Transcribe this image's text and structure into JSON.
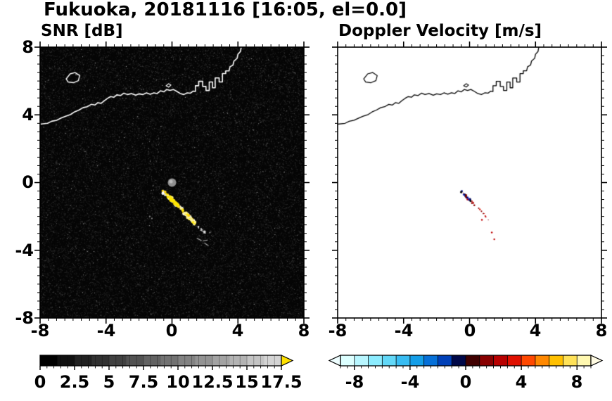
{
  "title": "Fukuoka, 20181116 [16:05, el=0.0]",
  "panels": [
    {
      "title": "SNR [dB]",
      "xticks": [
        "-8",
        "-4",
        "0",
        "4",
        "8"
      ],
      "yticks": [
        "8",
        "4",
        "0",
        "-4",
        "-8"
      ],
      "colorbar": {
        "labels": [
          "0",
          "2.5",
          "5",
          "7.5",
          "10",
          "12.5",
          "15",
          "17.5"
        ],
        "min": 0,
        "max": 17.5,
        "colormap": "grayscale",
        "over_arrow_color": "#ffe100"
      }
    },
    {
      "title": "Doppler Velocity [m/s]",
      "xticks": [
        "-8",
        "-4",
        "0",
        "4",
        "8"
      ],
      "colorbar": {
        "labels": [
          "-8",
          "-4",
          "0",
          "4",
          "8"
        ],
        "min": -9,
        "max": 9,
        "segment_colors": [
          "#dcffff",
          "#b8f6ff",
          "#8cecff",
          "#62d8f8",
          "#38bcf2",
          "#149ee8",
          "#0670d8",
          "#0040b8",
          "#000848",
          "#400000",
          "#880000",
          "#b80000",
          "#e01000",
          "#ff4800",
          "#ff8800",
          "#ffc000",
          "#ffe258",
          "#fff8b0"
        ],
        "under_arrow_color": "#eefeff",
        "over_arrow_color": "#fffbe2"
      }
    }
  ],
  "chart_data": {
    "type": "heatmap",
    "xlim": [
      -8,
      8
    ],
    "ylim": [
      -8,
      8
    ],
    "xticks": [
      -8,
      -4,
      0,
      4,
      8
    ],
    "yticks": [
      -8,
      -4,
      0,
      4,
      8
    ],
    "radar_site": [
      0,
      0
    ],
    "echo_streak": {
      "start": [
        -0.5,
        -0.55
      ],
      "end": [
        1.45,
        -2.45
      ]
    },
    "echo_tail": {
      "start": [
        1.55,
        -2.6
      ],
      "end": [
        2.05,
        -3.0
      ]
    },
    "snr_feature_colors": [
      "#ffffff",
      "#ffe600",
      "#fff48c",
      "#e6e6e6",
      "#ffd400"
    ],
    "doppler_negative_colors": [
      "#000850",
      "#001090",
      "#060606",
      "#1420b4"
    ],
    "doppler_positive_colors": [
      "#8b0000",
      "#c00000",
      "#e01000"
    ],
    "doppler_specks": [
      [
        1.35,
        -2.95
      ],
      [
        1.5,
        -3.35
      ],
      [
        0.75,
        -2.2
      ]
    ],
    "faint_points": [
      [
        -1.35,
        -2.0
      ],
      [
        -1.22,
        -2.12
      ],
      [
        2.3,
        -2.95
      ]
    ],
    "bracket_lines": [
      [
        [
          1.52,
          -3.3
        ],
        [
          1.78,
          -3.42
        ]
      ],
      [
        [
          1.9,
          -3.44
        ],
        [
          2.14,
          -3.4
        ]
      ],
      [
        [
          1.98,
          -3.58
        ],
        [
          2.2,
          -3.72
        ]
      ]
    ],
    "coastline": [
      [
        -8.0,
        3.45
      ],
      [
        -7.55,
        3.5
      ],
      [
        -7.3,
        3.62
      ],
      [
        -7.0,
        3.68
      ],
      [
        -6.7,
        3.82
      ],
      [
        -6.45,
        3.92
      ],
      [
        -6.15,
        4.02
      ],
      [
        -5.9,
        4.18
      ],
      [
        -5.65,
        4.28
      ],
      [
        -5.4,
        4.42
      ],
      [
        -5.15,
        4.48
      ],
      [
        -4.9,
        4.62
      ],
      [
        -4.68,
        4.58
      ],
      [
        -4.5,
        4.72
      ],
      [
        -4.3,
        4.68
      ],
      [
        -4.1,
        4.84
      ],
      [
        -3.9,
        4.98
      ],
      [
        -3.72,
        5.08
      ],
      [
        -3.52,
        5.04
      ],
      [
        -3.35,
        5.18
      ],
      [
        -3.12,
        5.14
      ],
      [
        -2.92,
        5.28
      ],
      [
        -2.7,
        5.2
      ],
      [
        -2.46,
        5.26
      ],
      [
        -2.2,
        5.16
      ],
      [
        -2.0,
        5.24
      ],
      [
        -1.76,
        5.2
      ],
      [
        -1.55,
        5.3
      ],
      [
        -1.32,
        5.22
      ],
      [
        -1.1,
        5.3
      ],
      [
        -0.9,
        5.26
      ],
      [
        -0.7,
        5.42
      ],
      [
        -0.5,
        5.36
      ],
      [
        -0.32,
        5.5
      ],
      [
        -0.12,
        5.44
      ],
      [
        0.08,
        5.5
      ],
      [
        0.3,
        5.38
      ],
      [
        0.5,
        5.26
      ],
      [
        0.72,
        5.2
      ],
      [
        0.92,
        5.3
      ],
      [
        1.12,
        5.28
      ],
      [
        1.28,
        5.4
      ],
      [
        1.42,
        5.38
      ],
      [
        1.42,
        5.72
      ],
      [
        1.62,
        5.72
      ],
      [
        1.62,
        5.98
      ],
      [
        1.86,
        5.98
      ],
      [
        1.86,
        5.68
      ],
      [
        2.06,
        5.68
      ],
      [
        2.06,
        5.44
      ],
      [
        2.26,
        5.44
      ],
      [
        2.26,
        5.94
      ],
      [
        2.46,
        5.94
      ],
      [
        2.46,
        5.6
      ],
      [
        2.62,
        5.6
      ],
      [
        2.62,
        6.18
      ],
      [
        2.86,
        6.18
      ],
      [
        2.86,
        5.94
      ],
      [
        3.06,
        5.94
      ],
      [
        3.06,
        6.44
      ],
      [
        3.26,
        6.44
      ],
      [
        3.26,
        6.6
      ],
      [
        3.46,
        6.6
      ],
      [
        3.52,
        6.84
      ],
      [
        3.7,
        6.94
      ],
      [
        3.76,
        7.18
      ],
      [
        3.95,
        7.34
      ],
      [
        4.0,
        7.58
      ],
      [
        4.15,
        7.74
      ],
      [
        4.2,
        8.0
      ]
    ],
    "island": [
      [
        -6.42,
        6.12
      ],
      [
        -6.18,
        6.42
      ],
      [
        -5.88,
        6.5
      ],
      [
        -5.6,
        6.32
      ],
      [
        -5.68,
        6.02
      ],
      [
        -5.98,
        5.9
      ],
      [
        -6.3,
        5.94
      ],
      [
        -6.42,
        6.12
      ]
    ],
    "islet": [
      [
        -0.36,
        5.72
      ],
      [
        -0.2,
        5.84
      ],
      [
        -0.06,
        5.76
      ],
      [
        -0.2,
        5.64
      ],
      [
        -0.36,
        5.72
      ]
    ]
  }
}
